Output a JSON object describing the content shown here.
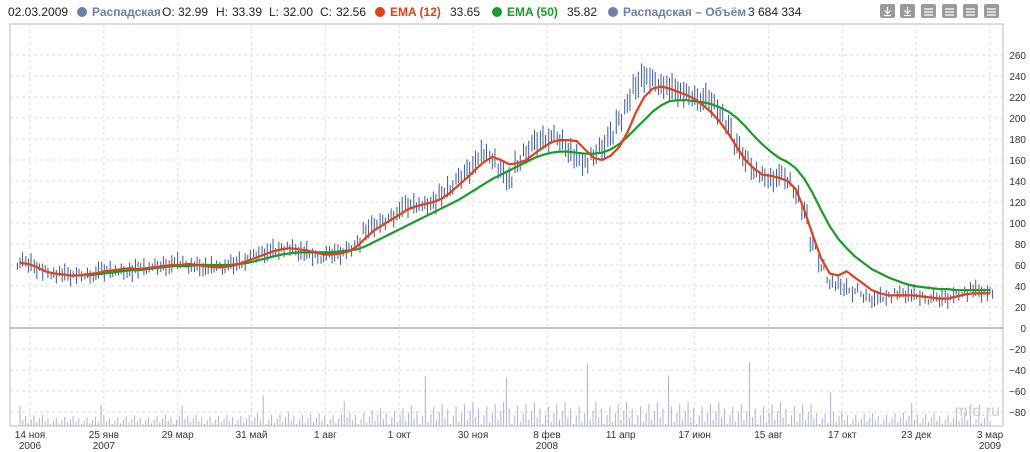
{
  "legend": {
    "date": "02.03.2009",
    "main_name": "Распадская",
    "open_label": "O:",
    "open_value": "32.99",
    "high_label": "H:",
    "high_value": "33.39",
    "low_label": "L:",
    "low_value": "32.00",
    "close_label": "C:",
    "close_value": "32.56",
    "ema12_name": "EMA (12)",
    "ema12_value": "33.65",
    "ema50_name": "EMA (50)",
    "ema50_value": "35.82",
    "volume_name": "Распадская – Объём",
    "volume_value": "3 684 334"
  },
  "toolbar": {
    "icons": [
      "download-icon",
      "download-icon",
      "chart-lines-icon",
      "chart-lines-icon",
      "chart-lines-icon",
      "chart-lines-icon"
    ]
  },
  "colors": {
    "price_bars": "#3c5a9a",
    "ema12": "#e0401a",
    "ema50": "#1a9a2a",
    "volume_bars": "#aab4d0",
    "grid": "#dddddd",
    "dot_main": "#6b7fa8",
    "dot_ema12": "#e0401a",
    "dot_ema50": "#1a9a2a",
    "dot_volume": "#6b7fa8"
  },
  "watermark": "mfd.ru",
  "chart_data": {
    "type": "line",
    "title": "",
    "x_ticks": [
      {
        "label": "14 ноя",
        "sub": "2006"
      },
      {
        "label": "25 янв",
        "sub": "2007"
      },
      {
        "label": "29 мар",
        "sub": ""
      },
      {
        "label": "31 май",
        "sub": ""
      },
      {
        "label": "1 авг",
        "sub": ""
      },
      {
        "label": "1 окт",
        "sub": ""
      },
      {
        "label": "30 ноя",
        "sub": ""
      },
      {
        "label": "8 фев",
        "sub": "2008"
      },
      {
        "label": "11 апр",
        "sub": ""
      },
      {
        "label": "17 июн",
        "sub": ""
      },
      {
        "label": "15 авг",
        "sub": ""
      },
      {
        "label": "17 окт",
        "sub": ""
      },
      {
        "label": "23 дек",
        "sub": ""
      },
      {
        "label": "3 мар",
        "sub": "2009"
      }
    ],
    "price_axis": {
      "ticks": [
        "0",
        "20",
        "40",
        "60",
        "80",
        "100",
        "120",
        "140",
        "160",
        "180",
        "200",
        "220",
        "240",
        "260"
      ],
      "range": [
        0,
        270
      ]
    },
    "volume_axis": {
      "ticks": [
        "−20",
        "−40",
        "−60",
        "−80"
      ]
    },
    "price": [
      62,
      61,
      58,
      54,
      52,
      51,
      50,
      50,
      51,
      52,
      54,
      55,
      54,
      55,
      56,
      57,
      58,
      60,
      61,
      62,
      60,
      59,
      58,
      57,
      58,
      60,
      63,
      66,
      69,
      72,
      74,
      76,
      75,
      73,
      71,
      69,
      68,
      70,
      72,
      75,
      82,
      92,
      98,
      100,
      106,
      112,
      116,
      118,
      117,
      121,
      126,
      133,
      142,
      150,
      158,
      166,
      162,
      150,
      142,
      155,
      168,
      176,
      180,
      182,
      178,
      170,
      162,
      158,
      163,
      172,
      182,
      198,
      214,
      230,
      240,
      236,
      232,
      228,
      225,
      222,
      220,
      218,
      214,
      205,
      192,
      175,
      160,
      150,
      144,
      142,
      146,
      140,
      128,
      110,
      82,
      58,
      44,
      40,
      38,
      35,
      30,
      28,
      29,
      31,
      32,
      32,
      31,
      30,
      28,
      27,
      29,
      32,
      34,
      36,
      34,
      33
    ],
    "ema12": [
      62,
      61,
      58,
      54,
      52,
      51,
      50,
      50,
      51,
      52,
      54,
      55,
      56,
      57,
      56,
      57,
      58,
      59,
      60,
      60,
      61,
      60,
      59,
      58,
      58,
      59,
      61,
      64,
      67,
      70,
      73,
      75,
      76,
      75,
      74,
      72,
      70,
      70,
      71,
      73,
      78,
      86,
      93,
      98,
      103,
      108,
      113,
      116,
      118,
      120,
      123,
      129,
      136,
      143,
      151,
      158,
      163,
      160,
      156,
      157,
      160,
      166,
      172,
      177,
      179,
      179,
      178,
      170,
      162,
      160,
      164,
      172,
      186,
      205,
      220,
      228,
      230,
      228,
      225,
      222,
      218,
      212,
      205,
      196,
      185,
      172,
      160,
      152,
      146,
      145,
      143,
      140,
      132,
      112,
      88,
      66,
      52,
      50,
      54,
      48,
      42,
      36,
      33,
      31,
      31,
      31,
      31,
      30,
      29,
      28,
      28,
      30,
      32,
      33,
      33,
      33
    ],
    "ema50": [
      null,
      null,
      null,
      null,
      null,
      null,
      null,
      null,
      50,
      51,
      52,
      53,
      54,
      55,
      55,
      56,
      57,
      58,
      59,
      59,
      59,
      60,
      60,
      60,
      60,
      60,
      61,
      62,
      64,
      66,
      68,
      70,
      71,
      72,
      72,
      72,
      72,
      72,
      73,
      74,
      75,
      78,
      82,
      86,
      90,
      94,
      98,
      102,
      106,
      110,
      114,
      118,
      122,
      127,
      132,
      137,
      142,
      146,
      150,
      154,
      158,
      162,
      165,
      167,
      168,
      168,
      167,
      166,
      166,
      167,
      170,
      175,
      182,
      190,
      198,
      206,
      212,
      216,
      217,
      217,
      216,
      215,
      213,
      210,
      206,
      200,
      192,
      183,
      175,
      168,
      162,
      158,
      152,
      142,
      128,
      112,
      97,
      85,
      76,
      68,
      62,
      56,
      52,
      48,
      45,
      42,
      40,
      39,
      38,
      37,
      37,
      36,
      36,
      36,
      36,
      36
    ],
    "ema12_values_source": "approximate, read from chart"
  }
}
